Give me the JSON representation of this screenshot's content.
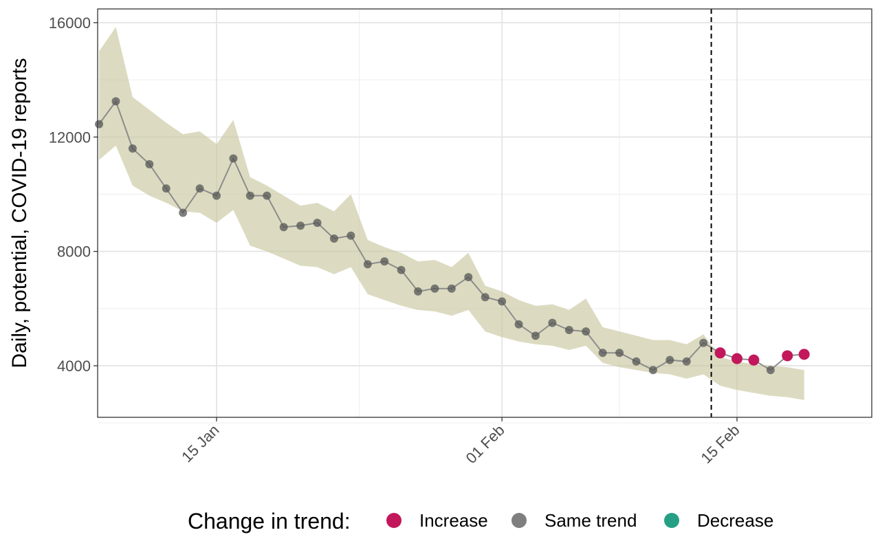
{
  "chart_data": {
    "type": "line",
    "ylabel": "Daily, potential, COVID-19 reports",
    "xlabel": "",
    "ylim": [
      2200,
      16500
    ],
    "xlim": [
      "2021-01-07",
      "2021-02-24"
    ],
    "y_ticks": [
      4000,
      8000,
      12000,
      16000
    ],
    "y_tick_labels": [
      "4000",
      "8000",
      "12000",
      "16000"
    ],
    "x_ticks": [
      "2021-01-15",
      "2021-02-01",
      "2021-02-15"
    ],
    "x_tick_labels": [
      "15 Jan",
      "01 Feb",
      "15 Feb"
    ],
    "grid": true,
    "vline": "2021-02-14",
    "legend": {
      "title": "Change in trend:",
      "position": "bottom",
      "items": [
        {
          "label": "Increase",
          "color": "#c2185b"
        },
        {
          "label": "Same trend",
          "color": "#7f7f7f"
        },
        {
          "label": "Decrease",
          "color": "#26a085"
        }
      ]
    },
    "ribbon_color": "#c9c7a0",
    "line_color": "#8c8c8c",
    "points": [
      {
        "x": "2021-01-08",
        "y": 12450,
        "trend": "Same trend"
      },
      {
        "x": "2021-01-09",
        "y": 13250,
        "trend": "Same trend"
      },
      {
        "x": "2021-01-10",
        "y": 11600,
        "trend": "Same trend"
      },
      {
        "x": "2021-01-11",
        "y": 11050,
        "trend": "Same trend"
      },
      {
        "x": "2021-01-12",
        "y": 10200,
        "trend": "Same trend"
      },
      {
        "x": "2021-01-13",
        "y": 9350,
        "trend": "Same trend"
      },
      {
        "x": "2021-01-14",
        "y": 10200,
        "trend": "Same trend"
      },
      {
        "x": "2021-01-15",
        "y": 9950,
        "trend": "Same trend"
      },
      {
        "x": "2021-01-16",
        "y": 11250,
        "trend": "Same trend"
      },
      {
        "x": "2021-01-17",
        "y": 9950,
        "trend": "Same trend"
      },
      {
        "x": "2021-01-18",
        "y": 9950,
        "trend": "Same trend"
      },
      {
        "x": "2021-01-19",
        "y": 8850,
        "trend": "Same trend"
      },
      {
        "x": "2021-01-20",
        "y": 8900,
        "trend": "Same trend"
      },
      {
        "x": "2021-01-21",
        "y": 9000,
        "trend": "Same trend"
      },
      {
        "x": "2021-01-22",
        "y": 8450,
        "trend": "Same trend"
      },
      {
        "x": "2021-01-23",
        "y": 8550,
        "trend": "Same trend"
      },
      {
        "x": "2021-01-24",
        "y": 7550,
        "trend": "Same trend"
      },
      {
        "x": "2021-01-25",
        "y": 7650,
        "trend": "Same trend"
      },
      {
        "x": "2021-01-26",
        "y": 7350,
        "trend": "Same trend"
      },
      {
        "x": "2021-01-27",
        "y": 6600,
        "trend": "Same trend"
      },
      {
        "x": "2021-01-28",
        "y": 6700,
        "trend": "Same trend"
      },
      {
        "x": "2021-01-29",
        "y": 6700,
        "trend": "Same trend"
      },
      {
        "x": "2021-01-30",
        "y": 7100,
        "trend": "Same trend"
      },
      {
        "x": "2021-01-31",
        "y": 6400,
        "trend": "Same trend"
      },
      {
        "x": "2021-02-01",
        "y": 6250,
        "trend": "Same trend"
      },
      {
        "x": "2021-02-02",
        "y": 5450,
        "trend": "Same trend"
      },
      {
        "x": "2021-02-03",
        "y": 5050,
        "trend": "Same trend"
      },
      {
        "x": "2021-02-04",
        "y": 5500,
        "trend": "Same trend"
      },
      {
        "x": "2021-02-05",
        "y": 5250,
        "trend": "Same trend"
      },
      {
        "x": "2021-02-06",
        "y": 5200,
        "trend": "Same trend"
      },
      {
        "x": "2021-02-07",
        "y": 4450,
        "trend": "Same trend"
      },
      {
        "x": "2021-02-08",
        "y": 4450,
        "trend": "Same trend"
      },
      {
        "x": "2021-02-09",
        "y": 4150,
        "trend": "Same trend"
      },
      {
        "x": "2021-02-10",
        "y": 3850,
        "trend": "Same trend"
      },
      {
        "x": "2021-02-11",
        "y": 4200,
        "trend": "Same trend"
      },
      {
        "x": "2021-02-12",
        "y": 4150,
        "trend": "Same trend"
      },
      {
        "x": "2021-02-13",
        "y": 4800,
        "trend": "Same trend"
      },
      {
        "x": "2021-02-14",
        "y": 4450,
        "trend": "Increase"
      },
      {
        "x": "2021-02-15",
        "y": 4250,
        "trend": "Increase"
      },
      {
        "x": "2021-02-16",
        "y": 4200,
        "trend": "Increase"
      },
      {
        "x": "2021-02-17",
        "y": 3850,
        "trend": "Same trend"
      },
      {
        "x": "2021-02-18",
        "y": 4350,
        "trend": "Increase"
      },
      {
        "x": "2021-02-19",
        "y": 4400,
        "trend": "Increase"
      }
    ],
    "ribbon": {
      "x": [
        "2021-01-08",
        "2021-01-09",
        "2021-01-10",
        "2021-01-11",
        "2021-01-12",
        "2021-01-13",
        "2021-01-14",
        "2021-01-15",
        "2021-01-16",
        "2021-01-17",
        "2021-01-18",
        "2021-01-19",
        "2021-01-20",
        "2021-01-21",
        "2021-01-22",
        "2021-01-23",
        "2021-01-24",
        "2021-01-25",
        "2021-01-26",
        "2021-01-27",
        "2021-01-28",
        "2021-01-29",
        "2021-01-30",
        "2021-01-31",
        "2021-02-01",
        "2021-02-02",
        "2021-02-03",
        "2021-02-04",
        "2021-02-05",
        "2021-02-06",
        "2021-02-07",
        "2021-02-08",
        "2021-02-09",
        "2021-02-10",
        "2021-02-11",
        "2021-02-12",
        "2021-02-13",
        "2021-02-14",
        "2021-02-15",
        "2021-02-16",
        "2021-02-17",
        "2021-02-18",
        "2021-02-19"
      ],
      "upper": [
        15000,
        15850,
        13400,
        12950,
        12500,
        12100,
        12200,
        11750,
        12600,
        10600,
        10300,
        9950,
        9600,
        9700,
        9400,
        10000,
        8400,
        8150,
        7950,
        7650,
        7700,
        7450,
        7950,
        6800,
        6600,
        6300,
        6100,
        6150,
        5950,
        6350,
        5350,
        5200,
        5050,
        4900,
        4900,
        4750,
        5100,
        4300,
        4150,
        4050,
        4000,
        3950,
        3850
      ],
      "lower": [
        11200,
        11700,
        10300,
        9950,
        9700,
        9400,
        9350,
        9000,
        9450,
        8200,
        8000,
        7750,
        7500,
        7450,
        7200,
        7450,
        6500,
        6300,
        6100,
        5950,
        5900,
        5750,
        5950,
        5200,
        5000,
        4850,
        4750,
        4700,
        4550,
        4700,
        4100,
        3950,
        3850,
        3750,
        3700,
        3550,
        3700,
        3300,
        3150,
        3050,
        2950,
        2900,
        2800
      ]
    }
  }
}
